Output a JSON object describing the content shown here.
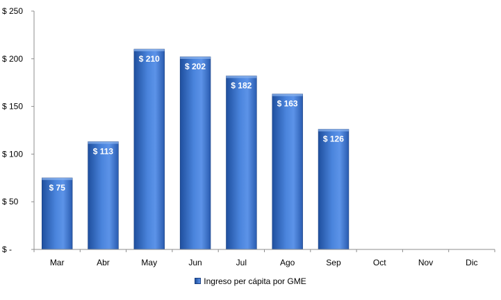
{
  "chart_data": {
    "type": "bar",
    "title": "",
    "xlabel": "",
    "ylabel": "",
    "categories": [
      "Mar",
      "Abr",
      "May",
      "Jun",
      "Jul",
      "Ago",
      "Sep",
      "Oct",
      "Nov",
      "Dic"
    ],
    "series": [
      {
        "name": "Ingreso per cápita por GME",
        "values": [
          75,
          113,
          210,
          202,
          182,
          163,
          126,
          null,
          null,
          null
        ],
        "data_labels": [
          "$ 75",
          "$ 113",
          "$ 210",
          "$ 202",
          "$ 182",
          "$ 163",
          "$ 126",
          "",
          "",
          ""
        ]
      }
    ],
    "ylim": [
      0,
      250
    ],
    "yticks": [
      0,
      50,
      100,
      150,
      200,
      250
    ],
    "ytick_labels": [
      "$ -",
      "$ 50",
      "$ 100",
      "$ 150",
      "$ 200",
      "$ 250"
    ],
    "grid": false,
    "legend_position": "bottom",
    "colors": {
      "bar_dark": "#1f4f9e",
      "bar_light": "#5c93e8",
      "bar_edge": "#1a3f80",
      "axis": "#8c8c8c"
    }
  }
}
